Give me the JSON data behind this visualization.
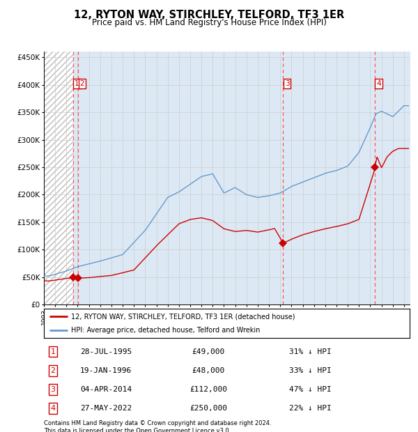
{
  "title": "12, RYTON WAY, STIRCHLEY, TELFORD, TF3 1ER",
  "subtitle": "Price paid vs. HM Land Registry's House Price Index (HPI)",
  "sale_label": "12, RYTON WAY, STIRCHLEY, TELFORD, TF3 1ER (detached house)",
  "hpi_label": "HPI: Average price, detached house, Telford and Wrekin",
  "footer1": "Contains HM Land Registry data © Crown copyright and database right 2024.",
  "footer2": "This data is licensed under the Open Government Licence v3.0.",
  "transactions": [
    {
      "num": 1,
      "date": "28-JUL-1995",
      "price": 49000,
      "pct": "31% ↓ HPI",
      "x_year": 1995.57
    },
    {
      "num": 2,
      "date": "19-JAN-1996",
      "price": 48000,
      "pct": "33% ↓ HPI",
      "x_year": 1996.05
    },
    {
      "num": 3,
      "date": "04-APR-2014",
      "price": 112000,
      "pct": "47% ↓ HPI",
      "x_year": 2014.25
    },
    {
      "num": 4,
      "date": "27-MAY-2022",
      "price": 250000,
      "pct": "22% ↓ HPI",
      "x_year": 2022.41
    }
  ],
  "xmin": 1993.0,
  "xmax": 2025.5,
  "ymin": 0,
  "ymax": 460000,
  "yticks": [
    0,
    50000,
    100000,
    150000,
    200000,
    250000,
    300000,
    350000,
    400000,
    450000
  ],
  "grid_color": "#cccccc",
  "hatch_color": "#bbbbbb",
  "bg_plot": "#dce9f5",
  "red_line_color": "#cc0000",
  "blue_line_color": "#6699cc",
  "dashed_color": "#ff5555",
  "marker_color": "#cc0000",
  "transaction_box_color": "#cc0000"
}
